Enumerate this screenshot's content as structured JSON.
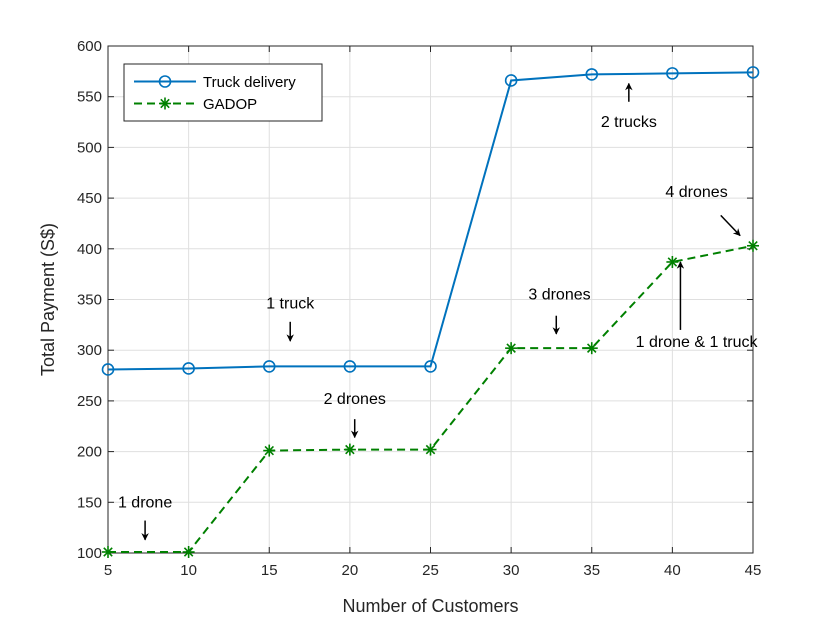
{
  "chart_data": {
    "type": "line",
    "title": "",
    "xlabel": "Number of Customers",
    "ylabel": "Total Payment (S$)",
    "xlim": [
      5,
      45
    ],
    "ylim": [
      100,
      600
    ],
    "x": [
      5,
      10,
      15,
      20,
      25,
      30,
      35,
      40,
      45
    ],
    "xticks": [
      5,
      10,
      15,
      20,
      25,
      30,
      35,
      40,
      45
    ],
    "yticks": [
      100,
      150,
      200,
      250,
      300,
      350,
      400,
      450,
      500,
      550,
      600
    ],
    "grid": true,
    "legend_position": "top-left",
    "series": [
      {
        "name": "Truck delivery",
        "color": "#0072BD",
        "line_style": "solid",
        "marker": "circle",
        "values": [
          281,
          282,
          284,
          284,
          284,
          566,
          572,
          573,
          574
        ]
      },
      {
        "name": "GADOP",
        "color": "#008000",
        "line_style": "dashed",
        "marker": "asterisk",
        "values": [
          101,
          101,
          201,
          202,
          202,
          302,
          302,
          387,
          403
        ]
      }
    ],
    "annotations": [
      {
        "text": "1 drone",
        "x": 7.3,
        "y": 145,
        "arrow_from": [
          7.3,
          132
        ],
        "arrow_to": [
          7.3,
          113
        ]
      },
      {
        "text": "2 drones",
        "x": 20.3,
        "y": 247,
        "arrow_from": [
          20.3,
          232
        ],
        "arrow_to": [
          20.3,
          214
        ]
      },
      {
        "text": "1 truck",
        "x": 16.3,
        "y": 341,
        "arrow_from": [
          16.3,
          328
        ],
        "arrow_to": [
          16.3,
          309
        ]
      },
      {
        "text": "3 drones",
        "x": 33.0,
        "y": 350,
        "arrow_from": [
          32.8,
          334
        ],
        "arrow_to": [
          32.8,
          316
        ]
      },
      {
        "text": "1 drone & 1 truck",
        "x": 41.5,
        "y": 303,
        "arrow_from": [
          40.5,
          320
        ],
        "arrow_to": [
          40.5,
          387
        ]
      },
      {
        "text": "4 drones",
        "x": 41.5,
        "y": 451,
        "arrow_from": [
          43.0,
          433
        ],
        "arrow_to": [
          44.2,
          413
        ]
      },
      {
        "text": "2 trucks",
        "x": 37.3,
        "y": 520,
        "arrow_from": [
          37.3,
          545
        ],
        "arrow_to": [
          37.3,
          563
        ]
      }
    ]
  }
}
